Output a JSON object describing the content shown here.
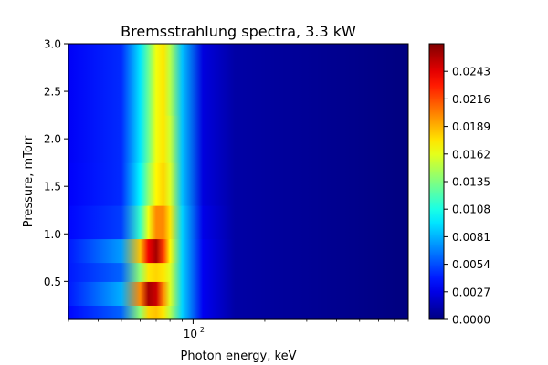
{
  "chart_data": {
    "type": "heatmap",
    "title": "Bremsstrahlung spectra, 3.3 kW",
    "xlabel": "Photon energy, keV",
    "ylabel": "Pressure, mTorr",
    "x_scale": "log",
    "xlim": [
      30,
      800
    ],
    "ylim": [
      0.1,
      3.0
    ],
    "x_ticks": [
      {
        "value": 100,
        "label": "10",
        "exp": "2"
      }
    ],
    "y_ticks": [
      {
        "value": 0.5,
        "label": "0.5"
      },
      {
        "value": 1.0,
        "label": "1.0"
      },
      {
        "value": 1.5,
        "label": "1.5"
      },
      {
        "value": 2.0,
        "label": "2.0"
      },
      {
        "value": 2.5,
        "label": "2.5"
      },
      {
        "value": 3.0,
        "label": "3.0"
      }
    ],
    "colormap": "jet",
    "zlim": [
      0.0,
      0.027
    ],
    "colorbar_ticks": [
      "0.0000",
      "0.0027",
      "0.0054",
      "0.0081",
      "0.0108",
      "0.0135",
      "0.0162",
      "0.0189",
      "0.0216",
      "0.0243"
    ],
    "z_series": [
      {
        "pressure": 0.1,
        "energies": [
          30,
          50,
          60,
          65,
          70,
          75,
          80,
          90,
          110,
          150,
          800
        ],
        "values": [
          0.0035,
          0.006,
          0.014,
          0.018,
          0.0185,
          0.0175,
          0.015,
          0.009,
          0.003,
          0.001,
          0.0
        ]
      },
      {
        "pressure": 0.4,
        "energies": [
          30,
          50,
          60,
          65,
          70,
          75,
          80,
          90,
          110,
          150,
          800
        ],
        "values": [
          0.004,
          0.008,
          0.02,
          0.026,
          0.025,
          0.02,
          0.016,
          0.009,
          0.003,
          0.001,
          0.0
        ]
      },
      {
        "pressure": 0.6,
        "energies": [
          30,
          50,
          60,
          65,
          70,
          75,
          80,
          90,
          110,
          150,
          800
        ],
        "values": [
          0.004,
          0.006,
          0.014,
          0.0175,
          0.018,
          0.0175,
          0.016,
          0.009,
          0.003,
          0.001,
          0.0
        ]
      },
      {
        "pressure": 0.8,
        "energies": [
          30,
          50,
          60,
          65,
          70,
          75,
          80,
          90,
          110,
          150,
          800
        ],
        "values": [
          0.004,
          0.0075,
          0.0185,
          0.024,
          0.026,
          0.022,
          0.017,
          0.009,
          0.003,
          0.001,
          0.0
        ]
      },
      {
        "pressure": 1.1,
        "energies": [
          30,
          50,
          60,
          65,
          70,
          75,
          80,
          90,
          110,
          150,
          800
        ],
        "values": [
          0.0035,
          0.005,
          0.0115,
          0.0165,
          0.02,
          0.02,
          0.0175,
          0.009,
          0.0028,
          0.001,
          0.0
        ]
      },
      {
        "pressure": 1.5,
        "energies": [
          30,
          50,
          60,
          65,
          70,
          75,
          80,
          90,
          110,
          150,
          800
        ],
        "values": [
          0.0033,
          0.0045,
          0.01,
          0.014,
          0.017,
          0.018,
          0.016,
          0.0085,
          0.0025,
          0.001,
          0.0
        ]
      },
      {
        "pressure": 2.0,
        "energies": [
          30,
          50,
          60,
          65,
          70,
          75,
          80,
          90,
          110,
          150,
          800
        ],
        "values": [
          0.0032,
          0.0045,
          0.0095,
          0.013,
          0.0165,
          0.0175,
          0.0155,
          0.0085,
          0.0025,
          0.001,
          0.0
        ]
      },
      {
        "pressure": 2.5,
        "energies": [
          30,
          50,
          60,
          65,
          70,
          75,
          80,
          90,
          110,
          150,
          800
        ],
        "values": [
          0.0032,
          0.0045,
          0.0095,
          0.013,
          0.0165,
          0.0175,
          0.015,
          0.0085,
          0.0025,
          0.001,
          0.0
        ]
      },
      {
        "pressure": 3.0,
        "energies": [
          30,
          50,
          60,
          65,
          70,
          75,
          80,
          90,
          110,
          150,
          800
        ],
        "values": [
          0.0032,
          0.0045,
          0.0095,
          0.013,
          0.0165,
          0.0175,
          0.015,
          0.0085,
          0.0025,
          0.001,
          0.0
        ]
      }
    ]
  }
}
